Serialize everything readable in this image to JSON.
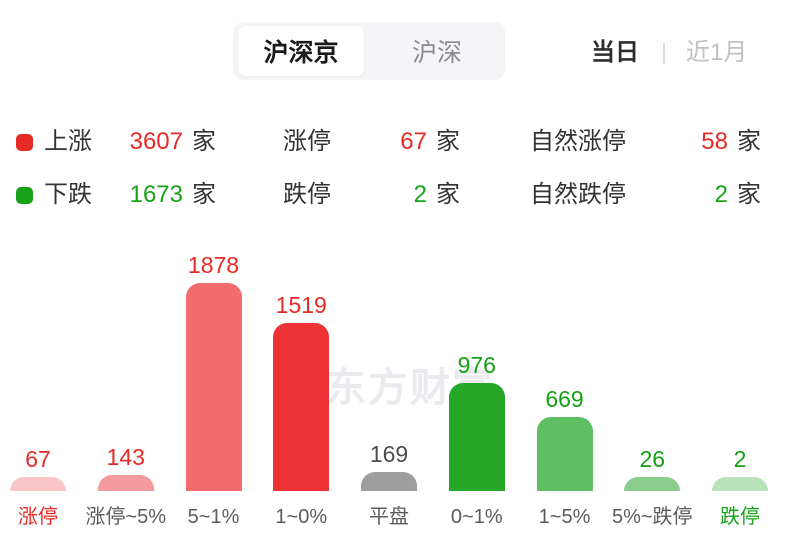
{
  "market_tabs": {
    "items": [
      {
        "label": "沪深京",
        "active": true
      },
      {
        "label": "沪深",
        "active": false
      }
    ]
  },
  "period_tabs": {
    "items": [
      {
        "label": "当日",
        "active": true
      },
      {
        "label": "近1月",
        "active": false
      }
    ]
  },
  "legend": {
    "unit": "家",
    "rows": [
      {
        "swatch_color": "#e62b26",
        "label": "上涨",
        "count": "3607",
        "group2_label": "涨停",
        "group2_count": "67",
        "group3_label": "自然涨停",
        "group3_count": "58",
        "count_color": "#e62b26"
      },
      {
        "swatch_color": "#17a317",
        "label": "下跌",
        "count": "1673",
        "group2_label": "跌停",
        "group2_count": "2",
        "group3_label": "自然跌停",
        "group3_count": "2",
        "count_color": "#17a317"
      }
    ]
  },
  "watermark": {
    "text": "东方财富",
    "color": "#eaeaef"
  },
  "chart_data": {
    "type": "bar",
    "categories": [
      "涨停",
      "涨停~5%",
      "5~1%",
      "1~0%",
      "平盘",
      "0~1%",
      "1~5%",
      "5%~跌停",
      "跌停"
    ],
    "values": [
      67,
      143,
      1878,
      1519,
      169,
      976,
      669,
      26,
      2
    ],
    "bar_colors": [
      "#f8c5c8",
      "#f49b9e",
      "#f26b6d",
      "#ee3336",
      "#9e9e9e",
      "#27a727",
      "#5fbf63",
      "#8ccd8e",
      "#bae3ba"
    ],
    "value_label_colors": [
      "#e62b26",
      "#e62b26",
      "#e62b26",
      "#e62b26",
      "#4d4d4d",
      "#15a015",
      "#15a015",
      "#15a015",
      "#15a015"
    ],
    "category_label_colors": [
      "#e62b26",
      "#5c5c5c",
      "#5c5c5c",
      "#5c5c5c",
      "#5c5c5c",
      "#5c5c5c",
      "#5c5c5c",
      "#5c5c5c",
      "#17a317"
    ],
    "ylim": [
      0,
      2000
    ],
    "grid": false,
    "value_labels": "above-bar",
    "legend_position": "top"
  }
}
